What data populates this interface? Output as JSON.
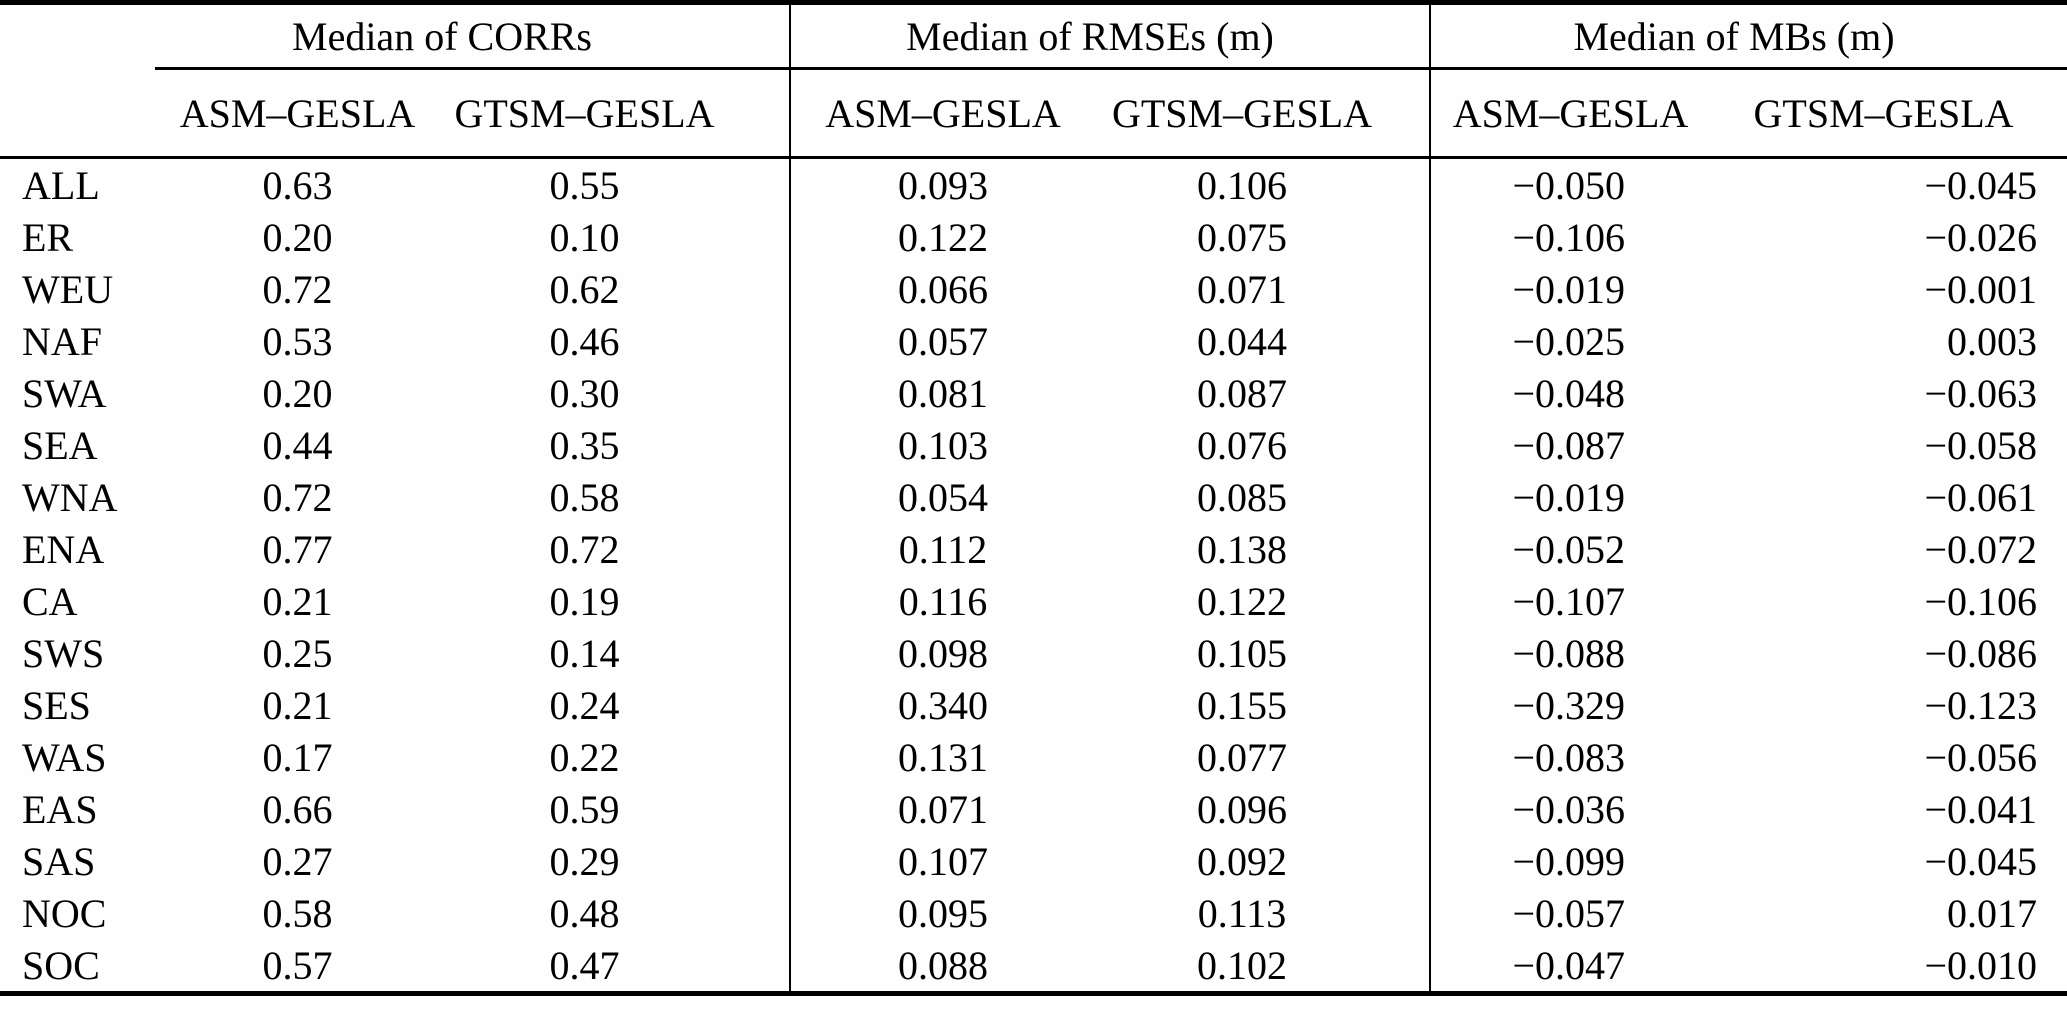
{
  "table": {
    "groups": [
      {
        "label": "Median of CORRs",
        "subcols": [
          "ASM–GESLA",
          "GTSM–GESLA"
        ]
      },
      {
        "label": "Median of RMSEs (m)",
        "subcols": [
          "ASM–GESLA",
          "GTSM–GESLA"
        ]
      },
      {
        "label": "Median of MBs (m)",
        "subcols": [
          "ASM–GESLA",
          "GTSM–GESLA"
        ]
      }
    ],
    "rows": [
      {
        "region": "ALL",
        "corr_asm": "0.63",
        "corr_gtsm": "0.55",
        "rmse_asm": "0.093",
        "rmse_gtsm": "0.106",
        "mb_asm": "−0.050",
        "mb_gtsm": "−0.045"
      },
      {
        "region": "ER",
        "corr_asm": "0.20",
        "corr_gtsm": "0.10",
        "rmse_asm": "0.122",
        "rmse_gtsm": "0.075",
        "mb_asm": "−0.106",
        "mb_gtsm": "−0.026"
      },
      {
        "region": "WEU",
        "corr_asm": "0.72",
        "corr_gtsm": "0.62",
        "rmse_asm": "0.066",
        "rmse_gtsm": "0.071",
        "mb_asm": "−0.019",
        "mb_gtsm": "−0.001"
      },
      {
        "region": "NAF",
        "corr_asm": "0.53",
        "corr_gtsm": "0.46",
        "rmse_asm": "0.057",
        "rmse_gtsm": "0.044",
        "mb_asm": "−0.025",
        "mb_gtsm": "0.003"
      },
      {
        "region": "SWA",
        "corr_asm": "0.20",
        "corr_gtsm": "0.30",
        "rmse_asm": "0.081",
        "rmse_gtsm": "0.087",
        "mb_asm": "−0.048",
        "mb_gtsm": "−0.063"
      },
      {
        "region": "SEA",
        "corr_asm": "0.44",
        "corr_gtsm": "0.35",
        "rmse_asm": "0.103",
        "rmse_gtsm": "0.076",
        "mb_asm": "−0.087",
        "mb_gtsm": "−0.058"
      },
      {
        "region": "WNA",
        "corr_asm": "0.72",
        "corr_gtsm": "0.58",
        "rmse_asm": "0.054",
        "rmse_gtsm": "0.085",
        "mb_asm": "−0.019",
        "mb_gtsm": "−0.061"
      },
      {
        "region": "ENA",
        "corr_asm": "0.77",
        "corr_gtsm": "0.72",
        "rmse_asm": "0.112",
        "rmse_gtsm": "0.138",
        "mb_asm": "−0.052",
        "mb_gtsm": "−0.072"
      },
      {
        "region": "CA",
        "corr_asm": "0.21",
        "corr_gtsm": "0.19",
        "rmse_asm": "0.116",
        "rmse_gtsm": "0.122",
        "mb_asm": "−0.107",
        "mb_gtsm": "−0.106"
      },
      {
        "region": "SWS",
        "corr_asm": "0.25",
        "corr_gtsm": "0.14",
        "rmse_asm": "0.098",
        "rmse_gtsm": "0.105",
        "mb_asm": "−0.088",
        "mb_gtsm": "−0.086"
      },
      {
        "region": "SES",
        "corr_asm": "0.21",
        "corr_gtsm": "0.24",
        "rmse_asm": "0.340",
        "rmse_gtsm": "0.155",
        "mb_asm": "−0.329",
        "mb_gtsm": "−0.123"
      },
      {
        "region": "WAS",
        "corr_asm": "0.17",
        "corr_gtsm": "0.22",
        "rmse_asm": "0.131",
        "rmse_gtsm": "0.077",
        "mb_asm": "−0.083",
        "mb_gtsm": "−0.056"
      },
      {
        "region": "EAS",
        "corr_asm": "0.66",
        "corr_gtsm": "0.59",
        "rmse_asm": "0.071",
        "rmse_gtsm": "0.096",
        "mb_asm": "−0.036",
        "mb_gtsm": "−0.041"
      },
      {
        "region": "SAS",
        "corr_asm": "0.27",
        "corr_gtsm": "0.29",
        "rmse_asm": "0.107",
        "rmse_gtsm": "0.092",
        "mb_asm": "−0.099",
        "mb_gtsm": "−0.045"
      },
      {
        "region": "NOC",
        "corr_asm": "0.58",
        "corr_gtsm": "0.48",
        "rmse_asm": "0.095",
        "rmse_gtsm": "0.113",
        "mb_asm": "−0.057",
        "mb_gtsm": "0.017"
      },
      {
        "region": "SOC",
        "corr_asm": "0.57",
        "corr_gtsm": "0.47",
        "rmse_asm": "0.088",
        "rmse_gtsm": "0.102",
        "mb_asm": "−0.047",
        "mb_gtsm": "−0.010"
      }
    ]
  }
}
